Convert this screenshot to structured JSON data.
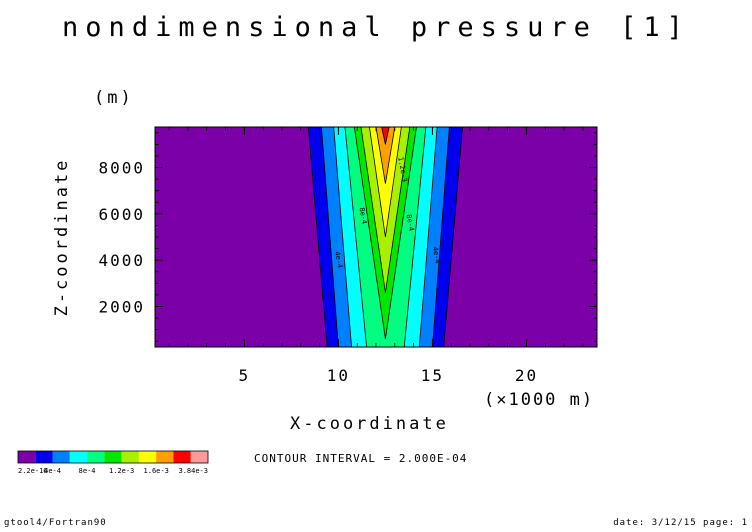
{
  "chart_data": {
    "type": "heatmap",
    "subtype": "filled-contour",
    "title": "nondimensional pressure [1]",
    "xlabel": "X-coordinate",
    "x_unit": "(×1000 m)",
    "ylabel": "Z-coordinate",
    "y_unit": "(m)",
    "xlim": [
      0.25,
      23.75
    ],
    "ylim": [
      250,
      9750
    ],
    "x_ticks": [
      5,
      10,
      15,
      20
    ],
    "y_ticks": [
      2000,
      4000,
      6000,
      8000
    ],
    "x_minor_step": 1,
    "y_minor_step": 500,
    "grid": false,
    "center_x": 12.5,
    "levels": [
      0,
      0.0002,
      0.0004,
      0.0006,
      0.0008,
      0.001,
      0.0012,
      0.0014,
      0.0016,
      0.0018,
      0.002
    ],
    "colors": [
      "#7b00a8",
      "#0000ee",
      "#0080ff",
      "#00ffff",
      "#00ff80",
      "#00e800",
      "#a8f000",
      "#ffff00",
      "#ffa000",
      "#ff0000",
      "#ff9a9a"
    ],
    "contour_half_widths": [
      {
        "level": 0.0002,
        "bottom": 3.1,
        "top": 4.1
      },
      {
        "level": 0.0004,
        "bottom": 2.5,
        "top": 3.4
      },
      {
        "level": 0.0006,
        "bottom": 1.8,
        "top": 2.75
      },
      {
        "level": 0.0008,
        "bottom": 1.0,
        "top": 2.15
      },
      {
        "level": 0.001,
        "bottom": 0.0,
        "top": 1.65,
        "apex_z": 600
      },
      {
        "level": 0.0012,
        "bottom": 0.0,
        "top": 1.3,
        "apex_z": 2600
      },
      {
        "level": 0.0014,
        "bottom": 0.0,
        "top": 0.85,
        "apex_z": 5000
      },
      {
        "level": 0.0016,
        "bottom": 0.0,
        "top": 0.5,
        "apex_z": 7300
      },
      {
        "level": 0.0018,
        "bottom": 0.0,
        "top": 0.2,
        "apex_z": 9000
      }
    ],
    "contour_labels": [
      {
        "text": "4e-4",
        "x": 9.9,
        "z": 4000
      },
      {
        "text": "8e-4",
        "x": 11.2,
        "z": 5900
      },
      {
        "text": "8e-4",
        "x": 13.7,
        "z": 5600
      },
      {
        "text": "1.2e-3",
        "x": 13.3,
        "z": 7900
      },
      {
        "text": "4e-4",
        "x": 15.1,
        "z": 4200
      }
    ],
    "legend": {
      "labels": [
        "2.2e-16",
        "4e-4",
        "8e-4",
        "1.2e-3",
        "1.6e-3",
        "3.84e-3"
      ]
    },
    "contour_interval": "CONTOUR INTERVAL = 2.000E-04"
  },
  "footer": {
    "left": "gtool4/Fortran90",
    "right": "date: 3/12/15 page: 1"
  }
}
